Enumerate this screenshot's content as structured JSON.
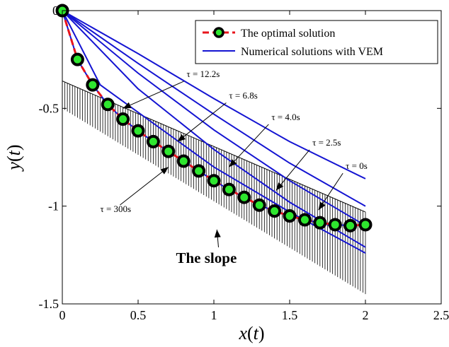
{
  "chart_data": {
    "type": "line",
    "title": "",
    "xlabel": "x(t)",
    "ylabel": "y(t)",
    "xlim": [
      0,
      2.5
    ],
    "ylim": [
      -1.5,
      0
    ],
    "x_ticks": [
      0,
      0.5,
      1,
      1.5,
      2,
      2.5
    ],
    "x_tick_labels": [
      "0",
      "0.5",
      "1",
      "1.5",
      "2",
      "2.5"
    ],
    "y_ticks": [
      0,
      -0.5,
      -1,
      -1.5
    ],
    "y_tick_labels": [
      "0",
      "-0.5",
      "-1",
      "-1.5"
    ],
    "grid": false,
    "legend_position": "top-right",
    "legend": [
      {
        "label": "The optimal solution",
        "style": "dashed line with circle markers",
        "color": "#e8141c",
        "marker_fill": "#2ee62e"
      },
      {
        "label": "Numerical solutions with VEM",
        "style": "solid line",
        "color": "#1414d2"
      }
    ],
    "optimal_solution": {
      "x": [
        0,
        0.1,
        0.2,
        0.3,
        0.4,
        0.5,
        0.6,
        0.7,
        0.8,
        0.9,
        1.0,
        1.1,
        1.2,
        1.3,
        1.4,
        1.5,
        1.6,
        1.7,
        1.8,
        1.9,
        2.0
      ],
      "y": [
        0,
        -0.25,
        -0.38,
        -0.48,
        -0.555,
        -0.615,
        -0.67,
        -0.72,
        -0.77,
        -0.82,
        -0.87,
        -0.915,
        -0.955,
        -0.995,
        -1.025,
        -1.05,
        -1.07,
        -1.085,
        -1.095,
        -1.1,
        -1.095
      ]
    },
    "series": [
      {
        "tau": "τ = 0s",
        "x": [
          0,
          0.5,
          1.0,
          1.5,
          2.0
        ],
        "y": [
          0,
          -0.22,
          -0.45,
          -0.67,
          -0.86
        ]
      },
      {
        "tau": "τ = 2.5s",
        "x": [
          0,
          0.5,
          1.0,
          1.5,
          2.0
        ],
        "y": [
          0,
          -0.27,
          -0.53,
          -0.78,
          -1.0
        ]
      },
      {
        "tau": "τ = 4.0s",
        "x": [
          0,
          0.5,
          1.0,
          1.5,
          2.0
        ],
        "y": [
          0,
          -0.32,
          -0.61,
          -0.87,
          -1.1
        ]
      },
      {
        "tau": "τ = 6.8s",
        "x": [
          0,
          0.5,
          1.0,
          1.5,
          2.0
        ],
        "y": [
          0,
          -0.4,
          -0.71,
          -0.98,
          -1.21
        ]
      },
      {
        "tau": "τ = 12.2s",
        "x": [
          0,
          0.25,
          0.5,
          1.0,
          1.5,
          2.0
        ],
        "y": [
          0,
          -0.38,
          -0.52,
          -0.8,
          -1.03,
          -1.24
        ]
      },
      {
        "tau": "τ = 300s",
        "x": [
          0,
          0.1,
          0.2,
          0.3,
          0.4,
          0.5,
          0.6,
          0.7,
          0.8,
          0.9,
          1.0,
          1.1,
          1.2,
          1.3,
          1.4,
          1.5,
          1.6,
          1.7,
          1.8,
          1.9,
          2.0
        ],
        "y": [
          0,
          -0.25,
          -0.38,
          -0.48,
          -0.555,
          -0.615,
          -0.67,
          -0.72,
          -0.77,
          -0.82,
          -0.87,
          -0.915,
          -0.955,
          -0.995,
          -1.025,
          -1.05,
          -1.07,
          -1.085,
          -1.095,
          -1.1,
          -1.095
        ]
      }
    ],
    "slope": {
      "x_start": 0,
      "x_end": 2.0,
      "y_top_start": -0.36,
      "y_top_end": -1.03,
      "y_bottom_start": -0.5,
      "y_bottom_end": -1.45
    },
    "annotations": [
      {
        "text": "τ = 12.2s",
        "text_x": 0.82,
        "text_y": -0.34,
        "arrow_to_x": 0.4,
        "arrow_to_y": -0.5
      },
      {
        "text": "τ = 6.8s",
        "text_x": 1.1,
        "text_y": -0.45,
        "arrow_to_x": 0.76,
        "arrow_to_y": -0.67
      },
      {
        "text": "τ = 4.0s",
        "text_x": 1.38,
        "text_y": -0.56,
        "arrow_to_x": 1.1,
        "arrow_to_y": -0.8
      },
      {
        "text": "τ = 2.5s",
        "text_x": 1.65,
        "text_y": -0.69,
        "arrow_to_x": 1.41,
        "arrow_to_y": -0.92
      },
      {
        "text": "τ = 0s",
        "text_x": 1.87,
        "text_y": -0.81,
        "arrow_to_x": 1.69,
        "arrow_to_y": -1.02
      },
      {
        "text": "τ = 300s",
        "text_x": 0.25,
        "text_y": -1.03,
        "arrow_to_x": 0.7,
        "arrow_to_y": -0.8
      },
      {
        "text": "The slope",
        "text_x": 0.75,
        "text_y": -1.29,
        "arrow_to_x": 1.02,
        "arrow_to_y": -1.12,
        "bold": true
      }
    ]
  }
}
